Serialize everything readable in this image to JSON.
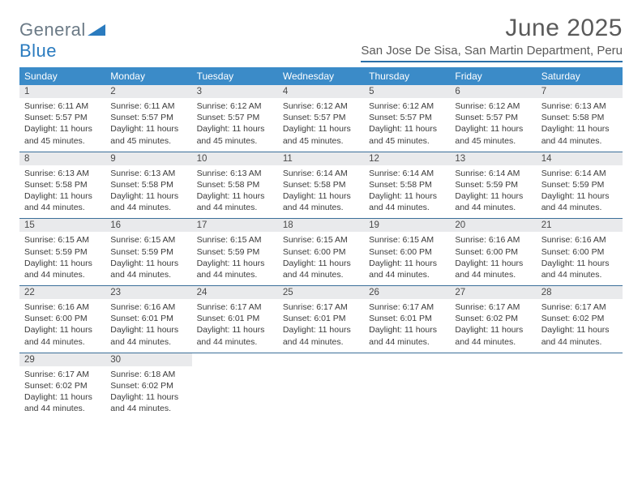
{
  "logo": {
    "general": "General",
    "blue": "Blue"
  },
  "title": "June 2025",
  "location": "San Jose De Sisa, San Martin Department, Peru",
  "colors": {
    "header_bg": "#3b8bc8",
    "header_text": "#ffffff",
    "daynum_bg": "#e9eaec",
    "week_border": "#3b6f99",
    "title_color": "#5a5a5a",
    "logo_gray": "#6b7a86",
    "logo_blue": "#2a7bbf"
  },
  "weekdays": [
    "Sunday",
    "Monday",
    "Tuesday",
    "Wednesday",
    "Thursday",
    "Friday",
    "Saturday"
  ],
  "weeks": [
    [
      {
        "n": "1",
        "sr": "Sunrise: 6:11 AM",
        "ss": "Sunset: 5:57 PM",
        "dl": "Daylight: 11 hours and 45 minutes."
      },
      {
        "n": "2",
        "sr": "Sunrise: 6:11 AM",
        "ss": "Sunset: 5:57 PM",
        "dl": "Daylight: 11 hours and 45 minutes."
      },
      {
        "n": "3",
        "sr": "Sunrise: 6:12 AM",
        "ss": "Sunset: 5:57 PM",
        "dl": "Daylight: 11 hours and 45 minutes."
      },
      {
        "n": "4",
        "sr": "Sunrise: 6:12 AM",
        "ss": "Sunset: 5:57 PM",
        "dl": "Daylight: 11 hours and 45 minutes."
      },
      {
        "n": "5",
        "sr": "Sunrise: 6:12 AM",
        "ss": "Sunset: 5:57 PM",
        "dl": "Daylight: 11 hours and 45 minutes."
      },
      {
        "n": "6",
        "sr": "Sunrise: 6:12 AM",
        "ss": "Sunset: 5:57 PM",
        "dl": "Daylight: 11 hours and 45 minutes."
      },
      {
        "n": "7",
        "sr": "Sunrise: 6:13 AM",
        "ss": "Sunset: 5:58 PM",
        "dl": "Daylight: 11 hours and 44 minutes."
      }
    ],
    [
      {
        "n": "8",
        "sr": "Sunrise: 6:13 AM",
        "ss": "Sunset: 5:58 PM",
        "dl": "Daylight: 11 hours and 44 minutes."
      },
      {
        "n": "9",
        "sr": "Sunrise: 6:13 AM",
        "ss": "Sunset: 5:58 PM",
        "dl": "Daylight: 11 hours and 44 minutes."
      },
      {
        "n": "10",
        "sr": "Sunrise: 6:13 AM",
        "ss": "Sunset: 5:58 PM",
        "dl": "Daylight: 11 hours and 44 minutes."
      },
      {
        "n": "11",
        "sr": "Sunrise: 6:14 AM",
        "ss": "Sunset: 5:58 PM",
        "dl": "Daylight: 11 hours and 44 minutes."
      },
      {
        "n": "12",
        "sr": "Sunrise: 6:14 AM",
        "ss": "Sunset: 5:58 PM",
        "dl": "Daylight: 11 hours and 44 minutes."
      },
      {
        "n": "13",
        "sr": "Sunrise: 6:14 AM",
        "ss": "Sunset: 5:59 PM",
        "dl": "Daylight: 11 hours and 44 minutes."
      },
      {
        "n": "14",
        "sr": "Sunrise: 6:14 AM",
        "ss": "Sunset: 5:59 PM",
        "dl": "Daylight: 11 hours and 44 minutes."
      }
    ],
    [
      {
        "n": "15",
        "sr": "Sunrise: 6:15 AM",
        "ss": "Sunset: 5:59 PM",
        "dl": "Daylight: 11 hours and 44 minutes."
      },
      {
        "n": "16",
        "sr": "Sunrise: 6:15 AM",
        "ss": "Sunset: 5:59 PM",
        "dl": "Daylight: 11 hours and 44 minutes."
      },
      {
        "n": "17",
        "sr": "Sunrise: 6:15 AM",
        "ss": "Sunset: 5:59 PM",
        "dl": "Daylight: 11 hours and 44 minutes."
      },
      {
        "n": "18",
        "sr": "Sunrise: 6:15 AM",
        "ss": "Sunset: 6:00 PM",
        "dl": "Daylight: 11 hours and 44 minutes."
      },
      {
        "n": "19",
        "sr": "Sunrise: 6:15 AM",
        "ss": "Sunset: 6:00 PM",
        "dl": "Daylight: 11 hours and 44 minutes."
      },
      {
        "n": "20",
        "sr": "Sunrise: 6:16 AM",
        "ss": "Sunset: 6:00 PM",
        "dl": "Daylight: 11 hours and 44 minutes."
      },
      {
        "n": "21",
        "sr": "Sunrise: 6:16 AM",
        "ss": "Sunset: 6:00 PM",
        "dl": "Daylight: 11 hours and 44 minutes."
      }
    ],
    [
      {
        "n": "22",
        "sr": "Sunrise: 6:16 AM",
        "ss": "Sunset: 6:00 PM",
        "dl": "Daylight: 11 hours and 44 minutes."
      },
      {
        "n": "23",
        "sr": "Sunrise: 6:16 AM",
        "ss": "Sunset: 6:01 PM",
        "dl": "Daylight: 11 hours and 44 minutes."
      },
      {
        "n": "24",
        "sr": "Sunrise: 6:17 AM",
        "ss": "Sunset: 6:01 PM",
        "dl": "Daylight: 11 hours and 44 minutes."
      },
      {
        "n": "25",
        "sr": "Sunrise: 6:17 AM",
        "ss": "Sunset: 6:01 PM",
        "dl": "Daylight: 11 hours and 44 minutes."
      },
      {
        "n": "26",
        "sr": "Sunrise: 6:17 AM",
        "ss": "Sunset: 6:01 PM",
        "dl": "Daylight: 11 hours and 44 minutes."
      },
      {
        "n": "27",
        "sr": "Sunrise: 6:17 AM",
        "ss": "Sunset: 6:02 PM",
        "dl": "Daylight: 11 hours and 44 minutes."
      },
      {
        "n": "28",
        "sr": "Sunrise: 6:17 AM",
        "ss": "Sunset: 6:02 PM",
        "dl": "Daylight: 11 hours and 44 minutes."
      }
    ],
    [
      {
        "n": "29",
        "sr": "Sunrise: 6:17 AM",
        "ss": "Sunset: 6:02 PM",
        "dl": "Daylight: 11 hours and 44 minutes."
      },
      {
        "n": "30",
        "sr": "Sunrise: 6:18 AM",
        "ss": "Sunset: 6:02 PM",
        "dl": "Daylight: 11 hours and 44 minutes."
      },
      {
        "empty": true
      },
      {
        "empty": true
      },
      {
        "empty": true
      },
      {
        "empty": true
      },
      {
        "empty": true
      }
    ]
  ]
}
